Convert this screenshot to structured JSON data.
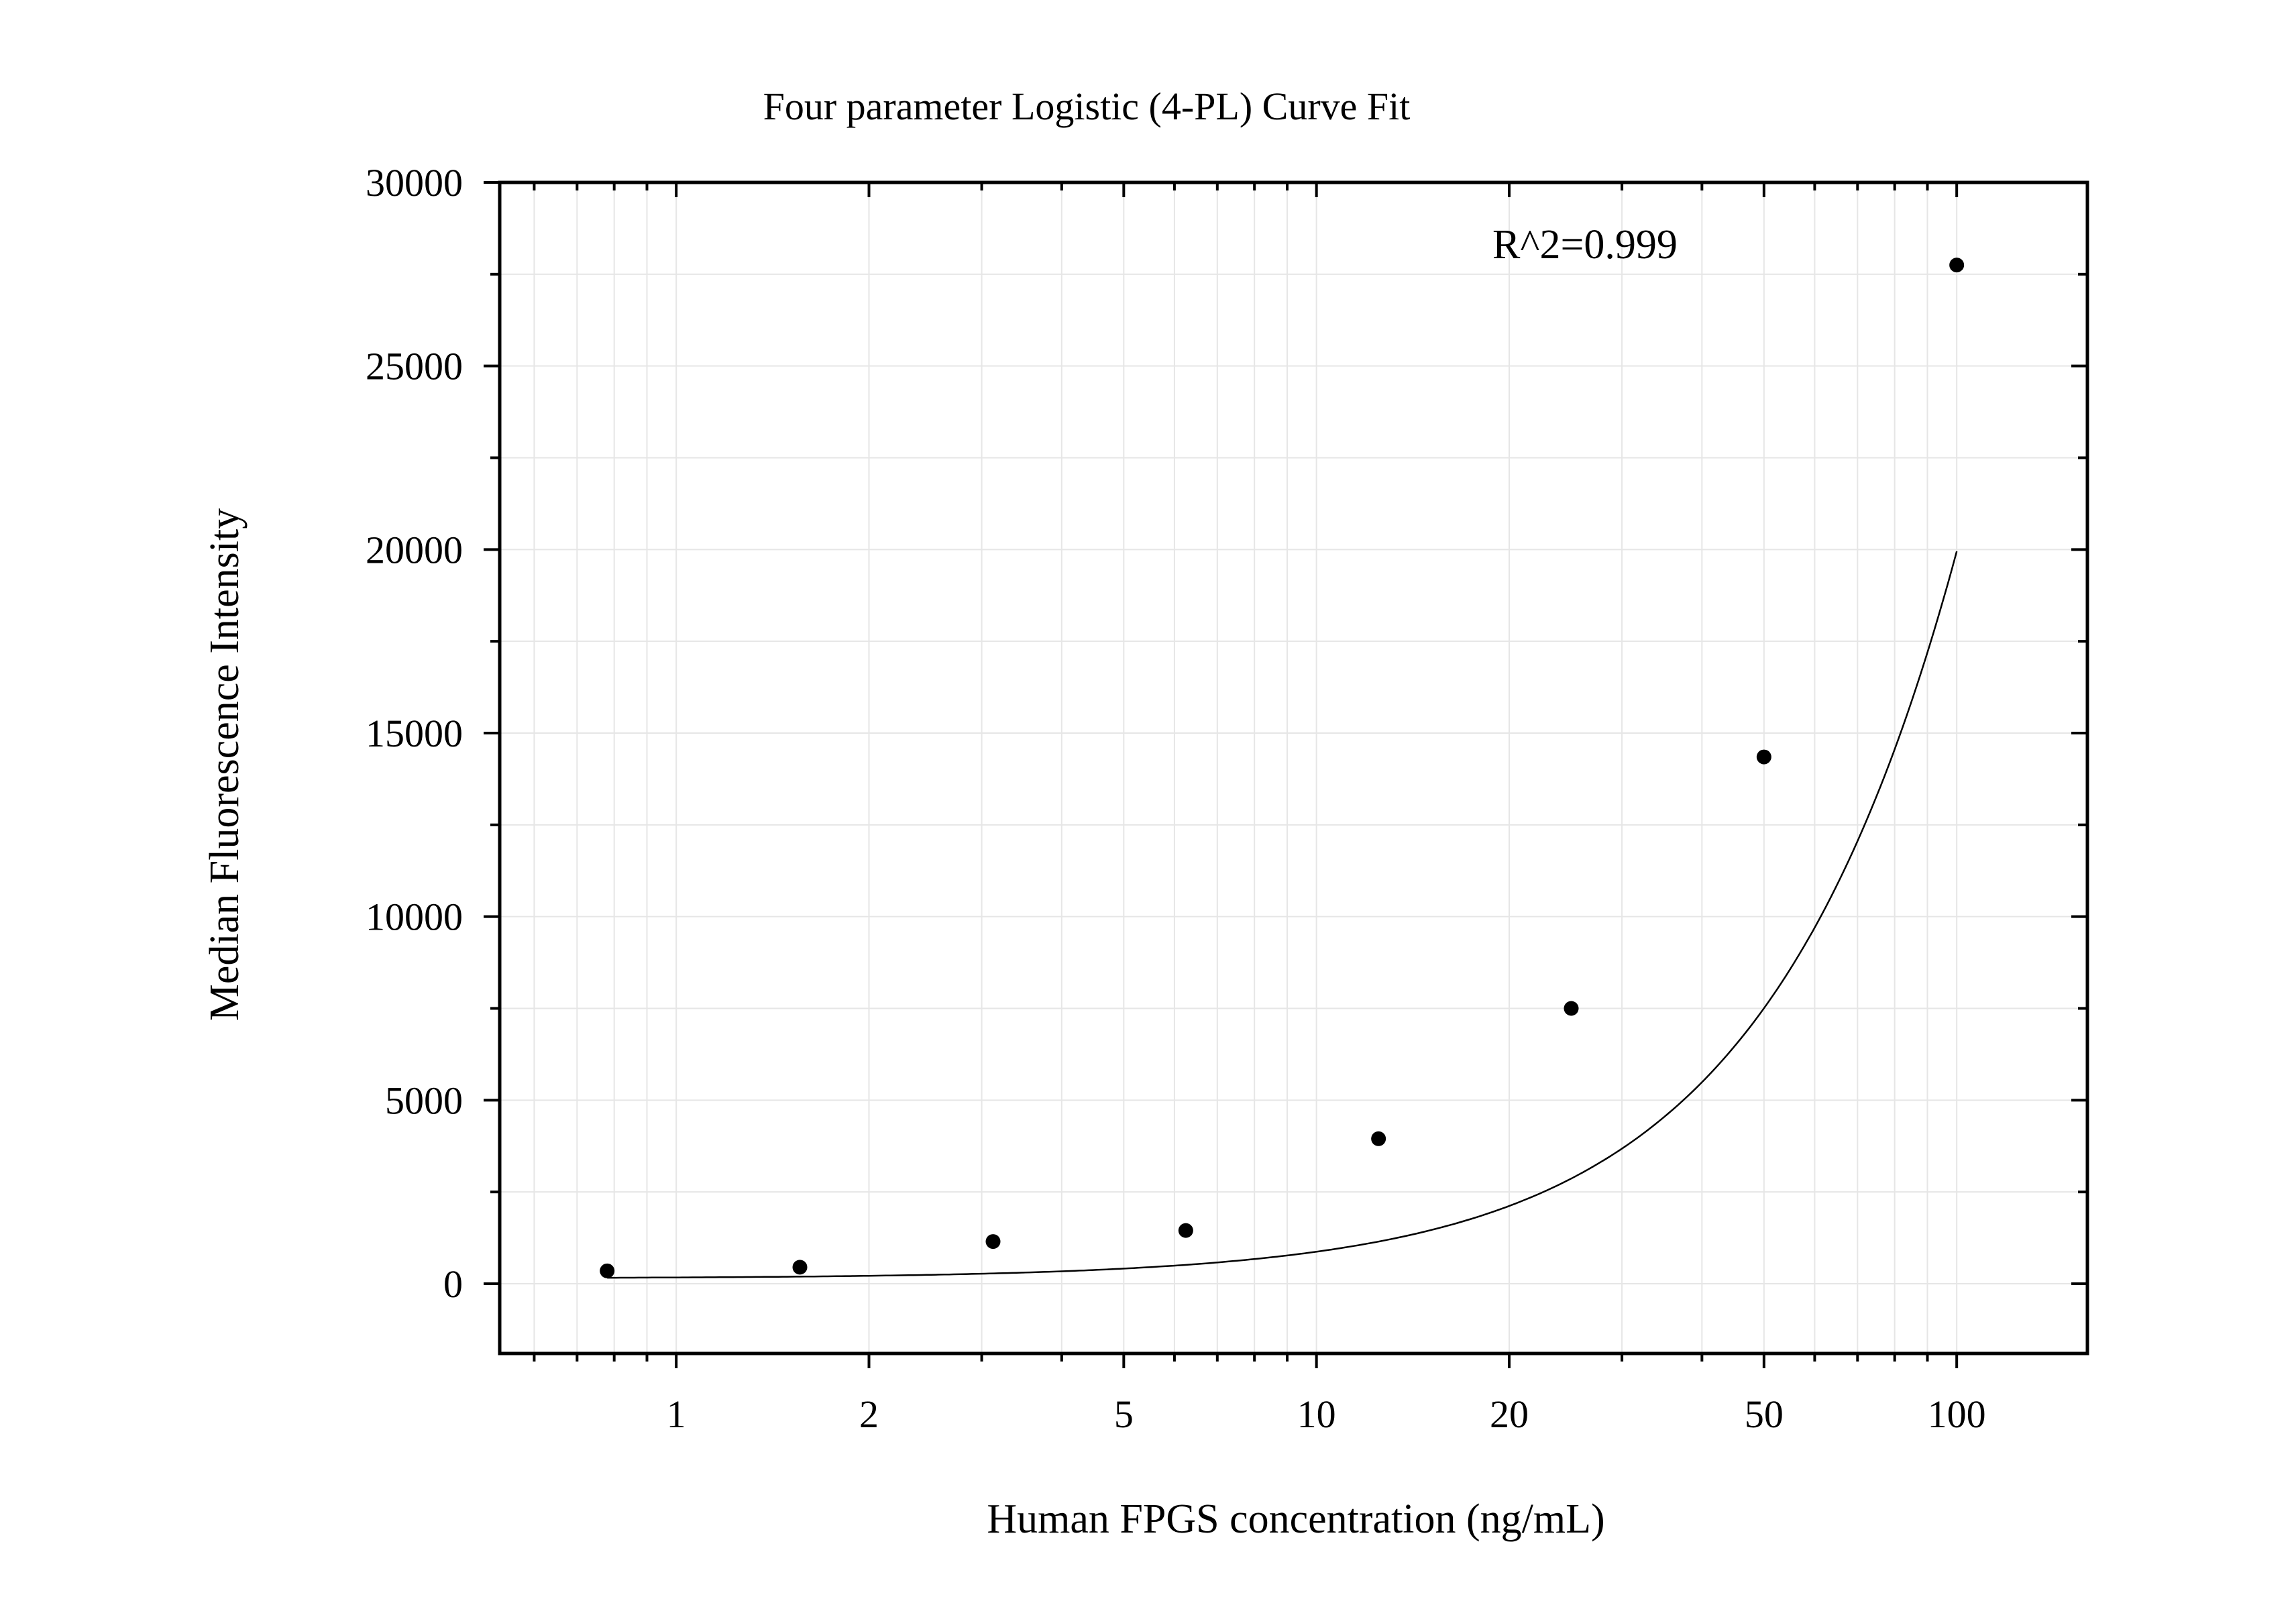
{
  "chart_data": {
    "type": "scatter",
    "title": "Four parameter Logistic (4-PL) Curve Fit",
    "xlabel": "Human FPGS concentration (ng/mL)",
    "ylabel": "Median Fluorescence Intensity",
    "x_scale": "log",
    "xlim": [
      0.53,
      160
    ],
    "ylim": [
      -1900,
      30000
    ],
    "x_ticks": [
      1,
      2,
      5,
      10,
      20,
      50,
      100
    ],
    "x_tick_labels": [
      "1",
      "2",
      "5",
      "10",
      "20",
      "50",
      "100"
    ],
    "y_ticks": [
      0,
      5000,
      10000,
      15000,
      20000,
      25000,
      30000
    ],
    "y_tick_labels": [
      "0",
      "5000",
      "10000",
      "15000",
      "20000",
      "25000",
      "30000"
    ],
    "annotation": "R^2=0.999",
    "grid": true,
    "series": [
      {
        "kind": "points",
        "x": [
          0.78,
          1.56,
          3.125,
          6.25,
          12.5,
          25,
          50,
          100
        ],
        "y": [
          350,
          450,
          1150,
          1450,
          3950,
          7500,
          14350,
          27750
        ]
      },
      {
        "kind": "fit-curve",
        "model": "4PL",
        "params": {
          "A": 144,
          "B": 1.44,
          "C": 2000,
          "D": 1500000
        },
        "x_range": [
          0.78,
          100
        ]
      }
    ],
    "colors": {
      "points": "#000000",
      "curve": "#000000",
      "grid": "#e6e6e6",
      "frame": "#000000"
    }
  }
}
